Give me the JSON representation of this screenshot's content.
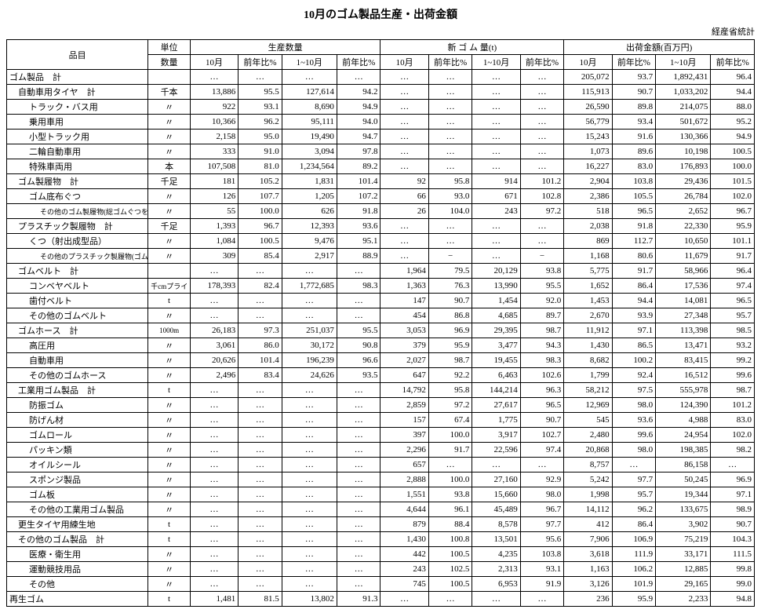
{
  "title": "10月のゴム製品生産・出荷金額",
  "source": "経産省統計",
  "col_widths_pct": [
    18.5,
    5.5,
    6.3,
    5.7,
    7.2,
    5.7,
    6.3,
    5.7,
    6.3,
    5.7,
    6.3,
    5.7,
    7.2,
    5.7
  ],
  "header": {
    "item": "品目",
    "unit": "単位",
    "prod_qty": "生産数量",
    "new_rubber": "新 ゴ ム 量(t)",
    "ship_value": "出荷金額(百万円)",
    "qty": "数量",
    "oct": "10月",
    "yoy": "前年比%",
    "jan_oct": "1~10月"
  },
  "rows": [
    {
      "item": "ゴム製品　計",
      "indent": 0,
      "unit": "",
      "c": [
        "…",
        "…",
        "…",
        "…",
        "…",
        "…",
        "…",
        "…",
        "205,072",
        "93.7",
        "1,892,431",
        "96.4"
      ]
    },
    {
      "item": "自動車用タイヤ　計",
      "indent": 1,
      "unit": "千本",
      "c": [
        "13,886",
        "95.5",
        "127,614",
        "94.2",
        "…",
        "…",
        "…",
        "…",
        "115,913",
        "90.7",
        "1,033,202",
        "94.4"
      ]
    },
    {
      "item": "トラック・バス用",
      "indent": 2,
      "unit": "〃",
      "c": [
        "922",
        "93.1",
        "8,690",
        "94.9",
        "…",
        "…",
        "…",
        "…",
        "26,590",
        "89.8",
        "214,075",
        "88.0"
      ]
    },
    {
      "item": "乗用車用",
      "indent": 2,
      "unit": "〃",
      "c": [
        "10,366",
        "96.2",
        "95,111",
        "94.0",
        "…",
        "…",
        "…",
        "…",
        "56,779",
        "93.4",
        "501,672",
        "95.2"
      ]
    },
    {
      "item": "小型トラック用",
      "indent": 2,
      "unit": "〃",
      "c": [
        "2,158",
        "95.0",
        "19,490",
        "94.7",
        "…",
        "…",
        "…",
        "…",
        "15,243",
        "91.6",
        "130,366",
        "94.9"
      ]
    },
    {
      "item": "二輪自動車用",
      "indent": 2,
      "unit": "〃",
      "c": [
        "333",
        "91.0",
        "3,094",
        "97.8",
        "…",
        "…",
        "…",
        "…",
        "1,073",
        "89.6",
        "10,198",
        "100.5"
      ]
    },
    {
      "item": "特殊車両用",
      "indent": 2,
      "unit": "本",
      "c": [
        "107,508",
        "81.0",
        "1,234,564",
        "89.2",
        "…",
        "…",
        "…",
        "…",
        "16,227",
        "83.0",
        "176,893",
        "100.0"
      ]
    },
    {
      "item": "ゴム製履物　計",
      "indent": 1,
      "unit": "千足",
      "c": [
        "181",
        "105.2",
        "1,831",
        "101.4",
        "92",
        "95.8",
        "914",
        "101.2",
        "2,904",
        "103.8",
        "29,436",
        "101.5"
      ]
    },
    {
      "item": "ゴム底布ぐつ",
      "indent": 2,
      "unit": "〃",
      "c": [
        "126",
        "107.7",
        "1,205",
        "107.2",
        "66",
        "93.0",
        "671",
        "102.8",
        "2,386",
        "105.5",
        "26,784",
        "102.0"
      ]
    },
    {
      "item": "その他のゴム製履物(総ゴムぐつを含む)",
      "indent": 3,
      "unit": "〃",
      "c": [
        "55",
        "100.0",
        "626",
        "91.8",
        "26",
        "104.0",
        "243",
        "97.2",
        "518",
        "96.5",
        "2,652",
        "96.7"
      ]
    },
    {
      "item": "プラスチック製履物　計",
      "indent": 1,
      "unit": "千足",
      "c": [
        "1,393",
        "96.7",
        "12,393",
        "93.6",
        "…",
        "…",
        "…",
        "…",
        "2,038",
        "91.8",
        "22,330",
        "95.9"
      ]
    },
    {
      "item": "くつ（射出成型品）",
      "indent": 2,
      "unit": "〃",
      "c": [
        "1,084",
        "100.5",
        "9,476",
        "95.1",
        "…",
        "…",
        "…",
        "…",
        "869",
        "112.7",
        "10,650",
        "101.1"
      ]
    },
    {
      "item": "その他のプラスチック製履物(ゴム・プラ)",
      "indent": 3,
      "unit": "〃",
      "c": [
        "309",
        "85.4",
        "2,917",
        "88.9",
        "…",
        "−",
        "…",
        "−",
        "1,168",
        "80.6",
        "11,679",
        "91.7"
      ]
    },
    {
      "item": "ゴムベルト　計",
      "indent": 1,
      "unit": "",
      "c": [
        "…",
        "…",
        "…",
        "…",
        "1,964",
        "79.5",
        "20,129",
        "93.8",
        "5,775",
        "91.7",
        "58,966",
        "96.4"
      ]
    },
    {
      "item": "コンベヤベルト",
      "indent": 2,
      "unit": "千cmプライ",
      "c": [
        "178,393",
        "82.4",
        "1,772,685",
        "98.3",
        "1,363",
        "76.3",
        "13,990",
        "95.5",
        "1,652",
        "86.4",
        "17,536",
        "97.4"
      ]
    },
    {
      "item": "歯付ベルト",
      "indent": 2,
      "unit": "t",
      "c": [
        "…",
        "…",
        "…",
        "…",
        "147",
        "90.7",
        "1,454",
        "92.0",
        "1,453",
        "94.4",
        "14,081",
        "96.5"
      ]
    },
    {
      "item": "その他のゴムベルト",
      "indent": 2,
      "unit": "〃",
      "c": [
        "…",
        "…",
        "…",
        "…",
        "454",
        "86.8",
        "4,685",
        "89.7",
        "2,670",
        "93.9",
        "27,348",
        "95.7"
      ]
    },
    {
      "item": "ゴムホース　計",
      "indent": 1,
      "unit": "1000m",
      "c": [
        "26,183",
        "97.3",
        "251,037",
        "95.5",
        "3,053",
        "96.9",
        "29,395",
        "98.7",
        "11,912",
        "97.1",
        "113,398",
        "98.5"
      ]
    },
    {
      "item": "高圧用",
      "indent": 2,
      "unit": "〃",
      "c": [
        "3,061",
        "86.0",
        "30,172",
        "90.8",
        "379",
        "95.9",
        "3,477",
        "94.3",
        "1,430",
        "86.5",
        "13,471",
        "93.2"
      ]
    },
    {
      "item": "自動車用",
      "indent": 2,
      "unit": "〃",
      "c": [
        "20,626",
        "101.4",
        "196,239",
        "96.6",
        "2,027",
        "98.7",
        "19,455",
        "98.3",
        "8,682",
        "100.2",
        "83,415",
        "99.2"
      ]
    },
    {
      "item": "その他のゴムホース",
      "indent": 2,
      "unit": "〃",
      "c": [
        "2,496",
        "83.4",
        "24,626",
        "93.5",
        "647",
        "92.2",
        "6,463",
        "102.6",
        "1,799",
        "92.4",
        "16,512",
        "99.6"
      ]
    },
    {
      "item": "工業用ゴム製品　計",
      "indent": 1,
      "unit": "t",
      "c": [
        "…",
        "…",
        "…",
        "…",
        "14,792",
        "95.8",
        "144,214",
        "96.3",
        "58,212",
        "97.5",
        "555,978",
        "98.7"
      ]
    },
    {
      "item": "防振ゴム",
      "indent": 2,
      "unit": "〃",
      "c": [
        "…",
        "…",
        "…",
        "…",
        "2,859",
        "97.2",
        "27,617",
        "96.5",
        "12,969",
        "98.0",
        "124,390",
        "101.2"
      ]
    },
    {
      "item": "防げん材",
      "indent": 2,
      "unit": "〃",
      "c": [
        "…",
        "…",
        "…",
        "…",
        "157",
        "67.4",
        "1,775",
        "90.7",
        "545",
        "93.6",
        "4,988",
        "83.0"
      ]
    },
    {
      "item": "ゴムロール",
      "indent": 2,
      "unit": "〃",
      "c": [
        "…",
        "…",
        "…",
        "…",
        "397",
        "100.0",
        "3,917",
        "102.7",
        "2,480",
        "99.6",
        "24,954",
        "102.0"
      ]
    },
    {
      "item": "パッキン類",
      "indent": 2,
      "unit": "〃",
      "c": [
        "…",
        "…",
        "…",
        "…",
        "2,296",
        "91.7",
        "22,596",
        "97.4",
        "20,868",
        "98.0",
        "198,385",
        "98.2"
      ]
    },
    {
      "item": "オイルシール",
      "indent": 2,
      "unit": "〃",
      "c": [
        "…",
        "…",
        "…",
        "…",
        "657",
        "…",
        "…",
        "…",
        "8,757",
        "…",
        "86,158",
        "…"
      ]
    },
    {
      "item": "スポンジ製品",
      "indent": 2,
      "unit": "〃",
      "c": [
        "…",
        "…",
        "…",
        "…",
        "2,888",
        "100.0",
        "27,160",
        "92.9",
        "5,242",
        "97.7",
        "50,245",
        "96.9"
      ]
    },
    {
      "item": "ゴム板",
      "indent": 2,
      "unit": "〃",
      "c": [
        "…",
        "…",
        "…",
        "…",
        "1,551",
        "93.8",
        "15,660",
        "98.0",
        "1,998",
        "95.7",
        "19,344",
        "97.1"
      ]
    },
    {
      "item": "その他の工業用ゴム製品",
      "indent": 2,
      "unit": "〃",
      "c": [
        "…",
        "…",
        "…",
        "…",
        "4,644",
        "96.1",
        "45,489",
        "96.7",
        "14,112",
        "96.2",
        "133,675",
        "98.9"
      ]
    },
    {
      "item": "更生タイヤ用練生地",
      "indent": 1,
      "unit": "t",
      "c": [
        "…",
        "…",
        "…",
        "…",
        "879",
        "88.4",
        "8,578",
        "97.7",
        "412",
        "86.4",
        "3,902",
        "90.7"
      ]
    },
    {
      "item": "その他のゴム製品　計",
      "indent": 1,
      "unit": "t",
      "c": [
        "…",
        "…",
        "…",
        "…",
        "1,430",
        "100.8",
        "13,501",
        "95.6",
        "7,906",
        "106.9",
        "75,219",
        "104.3"
      ]
    },
    {
      "item": "医療・衛生用",
      "indent": 2,
      "unit": "〃",
      "c": [
        "…",
        "…",
        "…",
        "…",
        "442",
        "100.5",
        "4,235",
        "103.8",
        "3,618",
        "111.9",
        "33,171",
        "111.5"
      ]
    },
    {
      "item": "運動競技用品",
      "indent": 2,
      "unit": "〃",
      "c": [
        "…",
        "…",
        "…",
        "…",
        "243",
        "102.5",
        "2,313",
        "93.1",
        "1,163",
        "106.2",
        "12,885",
        "99.8"
      ]
    },
    {
      "item": "その他",
      "indent": 2,
      "unit": "〃",
      "c": [
        "…",
        "…",
        "…",
        "…",
        "745",
        "100.5",
        "6,953",
        "91.9",
        "3,126",
        "101.9",
        "29,165",
        "99.0"
      ]
    },
    {
      "item": "再生ゴム",
      "indent": 0,
      "unit": "t",
      "c": [
        "1,481",
        "81.5",
        "13,802",
        "91.3",
        "…",
        "…",
        "…",
        "…",
        "236",
        "95.9",
        "2,233",
        "94.8"
      ]
    }
  ]
}
